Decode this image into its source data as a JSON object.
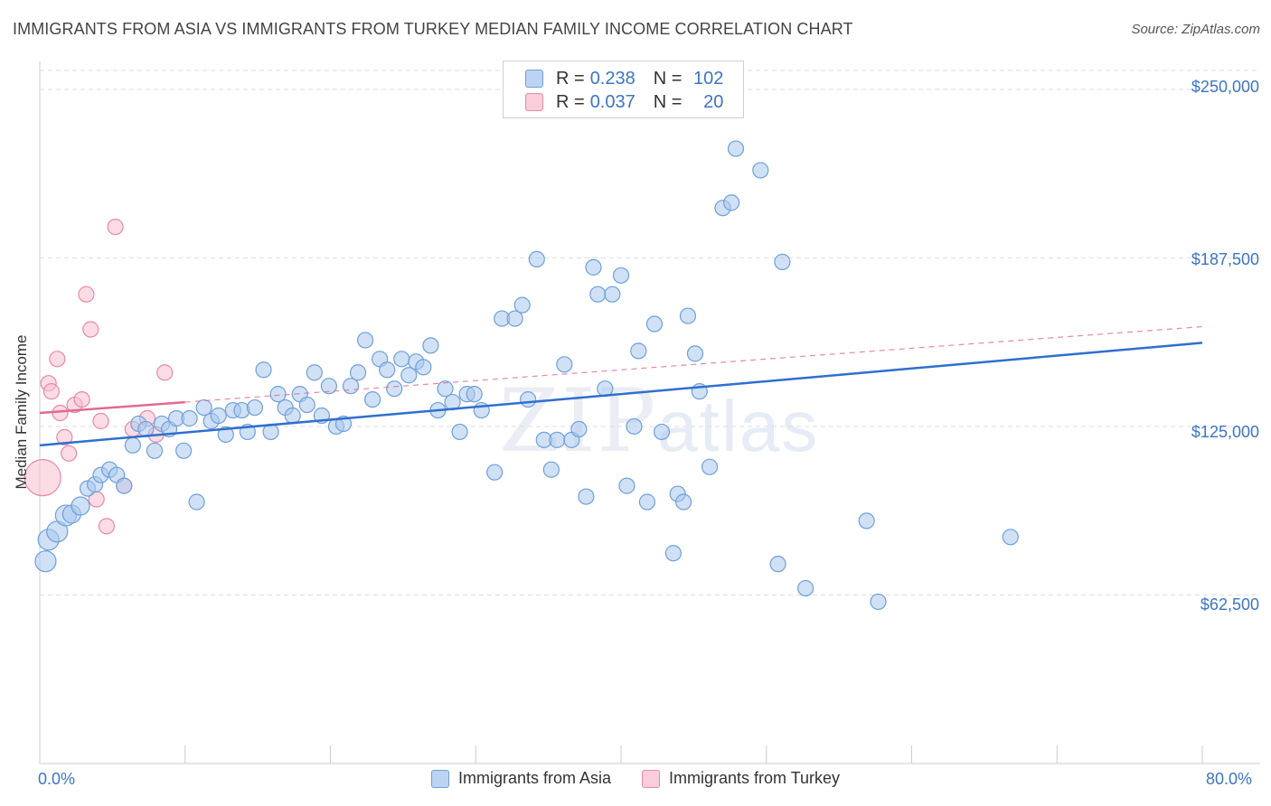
{
  "title": "IMMIGRANTS FROM ASIA VS IMMIGRANTS FROM TURKEY MEDIAN FAMILY INCOME CORRELATION CHART",
  "source": "Source: ZipAtlas.com",
  "watermark": {
    "zip": "ZIP",
    "atlas": "atlas"
  },
  "colors": {
    "asia_fill": "#aac8ee",
    "asia_stroke": "#6f9fd8",
    "asia_line": "#2f6fcf",
    "turkey_fill": "#f7bfd0",
    "turkey_stroke": "#e68aa6",
    "turkey_line": "#e06a92",
    "tick_text": "#3d74c4",
    "grid": "#dcdcdc"
  },
  "legend": {
    "rows": [
      {
        "r_label": "R =",
        "r_value": "0.238",
        "n_label": "N =",
        "n_value": "102"
      },
      {
        "r_label": "R =",
        "r_value": "0.037",
        "n_label": "N =",
        "n_value": "20"
      }
    ]
  },
  "bottom_legend": [
    "Immigrants from Asia",
    "Immigrants from Turkey"
  ],
  "chart_data": {
    "type": "scatter",
    "title": "IMMIGRANTS FROM ASIA VS IMMIGRANTS FROM TURKEY MEDIAN FAMILY INCOME CORRELATION CHART",
    "xlabel": "",
    "ylabel": "Median Family Income",
    "xlim": [
      0,
      80
    ],
    "ylim": [
      0,
      257000
    ],
    "x_tick_labels": [
      "0.0%",
      "80.0%"
    ],
    "y_ticks": [
      62500,
      125000,
      187500,
      250000
    ],
    "y_tick_labels": [
      "$62,500",
      "$125,000",
      "$187,500",
      "$250,000"
    ],
    "grid": true,
    "series": [
      {
        "name": "Immigrants from Asia",
        "r": 0.238,
        "n": 102,
        "trend": {
          "x0": 0,
          "y0": 118000,
          "x1": 80,
          "y1": 156000
        },
        "points": [
          [
            0.4,
            75000,
            2
          ],
          [
            0.6,
            83000,
            2
          ],
          [
            1.2,
            86000,
            2
          ],
          [
            1.8,
            92000,
            2
          ],
          [
            2.2,
            92500,
            1.5
          ],
          [
            2.8,
            95500,
            1.5
          ],
          [
            3.3,
            102000,
            1
          ],
          [
            3.8,
            103500,
            1
          ],
          [
            4.2,
            107000,
            1
          ],
          [
            4.8,
            109000,
            1
          ],
          [
            5.3,
            107000,
            1
          ],
          [
            5.8,
            103000,
            1
          ],
          [
            6.4,
            118000,
            1
          ],
          [
            6.8,
            126000,
            1
          ],
          [
            7.3,
            124000,
            1
          ],
          [
            7.9,
            116000,
            1
          ],
          [
            8.4,
            126000,
            1
          ],
          [
            8.9,
            124000,
            1
          ],
          [
            9.4,
            128000,
            1
          ],
          [
            9.9,
            116000,
            1
          ],
          [
            10.3,
            128000,
            1
          ],
          [
            10.8,
            97000,
            1
          ],
          [
            11.3,
            132000,
            1
          ],
          [
            11.8,
            127000,
            1
          ],
          [
            12.3,
            129000,
            1
          ],
          [
            12.8,
            122000,
            1
          ],
          [
            13.3,
            131000,
            1
          ],
          [
            13.9,
            131000,
            1
          ],
          [
            14.3,
            123000,
            1
          ],
          [
            14.8,
            132000,
            1
          ],
          [
            15.4,
            146000,
            1
          ],
          [
            15.9,
            123000,
            1
          ],
          [
            16.4,
            137000,
            1
          ],
          [
            16.9,
            132000,
            1
          ],
          [
            17.4,
            129000,
            1
          ],
          [
            17.9,
            137000,
            1
          ],
          [
            18.4,
            133000,
            1
          ],
          [
            18.9,
            145000,
            1
          ],
          [
            19.4,
            129000,
            1
          ],
          [
            19.9,
            140000,
            1
          ],
          [
            20.4,
            125000,
            1
          ],
          [
            20.9,
            126000,
            1
          ],
          [
            21.4,
            140000,
            1
          ],
          [
            21.9,
            145000,
            1
          ],
          [
            22.4,
            157000,
            1
          ],
          [
            22.9,
            135000,
            1
          ],
          [
            23.4,
            150000,
            1
          ],
          [
            23.9,
            146000,
            1
          ],
          [
            24.4,
            139000,
            1
          ],
          [
            24.9,
            150000,
            1
          ],
          [
            25.4,
            144000,
            1
          ],
          [
            25.9,
            149000,
            1
          ],
          [
            26.4,
            147000,
            1
          ],
          [
            26.9,
            155000,
            1
          ],
          [
            27.4,
            131000,
            1
          ],
          [
            27.9,
            139000,
            1
          ],
          [
            28.4,
            134000,
            1
          ],
          [
            28.9,
            123000,
            1
          ],
          [
            29.4,
            137000,
            1
          ],
          [
            29.9,
            137000,
            1
          ],
          [
            30.4,
            131000,
            1
          ],
          [
            31.3,
            108000,
            1
          ],
          [
            31.8,
            165000,
            1
          ],
          [
            32.7,
            165000,
            1
          ],
          [
            33.2,
            170000,
            1
          ],
          [
            33.6,
            135000,
            1
          ],
          [
            34.2,
            187000,
            1
          ],
          [
            34.7,
            120000,
            1
          ],
          [
            35.2,
            109000,
            1
          ],
          [
            35.6,
            120000,
            1
          ],
          [
            36.1,
            148000,
            1
          ],
          [
            36.6,
            120000,
            1
          ],
          [
            37.1,
            124000,
            1
          ],
          [
            37.6,
            99000,
            1
          ],
          [
            38.1,
            184000,
            1
          ],
          [
            38.4,
            174000,
            1
          ],
          [
            38.9,
            139000,
            1
          ],
          [
            39.4,
            174000,
            1
          ],
          [
            40.0,
            181000,
            1
          ],
          [
            40.4,
            103000,
            1
          ],
          [
            40.9,
            125000,
            1
          ],
          [
            41.2,
            153000,
            1
          ],
          [
            41.8,
            97000,
            1
          ],
          [
            42.3,
            163000,
            1
          ],
          [
            42.8,
            123000,
            1
          ],
          [
            43.6,
            78000,
            1
          ],
          [
            43.9,
            100000,
            1
          ],
          [
            44.3,
            97000,
            1
          ],
          [
            44.6,
            166000,
            1
          ],
          [
            45.1,
            152000,
            1
          ],
          [
            45.4,
            138000,
            1
          ],
          [
            46.1,
            110000,
            1
          ],
          [
            47.0,
            206000,
            1
          ],
          [
            47.6,
            208000,
            1
          ],
          [
            47.9,
            228000,
            1
          ],
          [
            49.6,
            220000,
            1
          ],
          [
            50.8,
            74000,
            1
          ],
          [
            51.1,
            186000,
            1
          ],
          [
            52.7,
            65000,
            1
          ],
          [
            57.7,
            60000,
            1
          ],
          [
            56.9,
            90000,
            1
          ],
          [
            66.8,
            84000,
            1
          ]
        ]
      },
      {
        "name": "Immigrants from Turkey",
        "r": 0.037,
        "n": 20,
        "trend": {
          "x0": 0,
          "y0": 130000,
          "x1": 10,
          "y1": 134000
        },
        "trend_extension": {
          "x0": 10,
          "y0": 134000,
          "x1": 80,
          "y1": 162000
        },
        "points": [
          [
            0.2,
            106000,
            3
          ],
          [
            0.6,
            141000,
            1
          ],
          [
            0.8,
            138000,
            1
          ],
          [
            1.2,
            150000,
            1
          ],
          [
            1.4,
            130000,
            1
          ],
          [
            1.7,
            121000,
            1
          ],
          [
            2.0,
            115000,
            1
          ],
          [
            2.4,
            133000,
            1
          ],
          [
            2.9,
            135000,
            1
          ],
          [
            3.2,
            174000,
            1
          ],
          [
            3.5,
            161000,
            1
          ],
          [
            3.9,
            98000,
            1
          ],
          [
            4.2,
            127000,
            1
          ],
          [
            4.6,
            88000,
            1
          ],
          [
            5.2,
            199000,
            1
          ],
          [
            5.8,
            103000,
            1
          ],
          [
            6.4,
            124000,
            1
          ],
          [
            7.4,
            128000,
            1
          ],
          [
            8.0,
            122000,
            1
          ],
          [
            8.6,
            145000,
            1
          ]
        ]
      }
    ]
  }
}
